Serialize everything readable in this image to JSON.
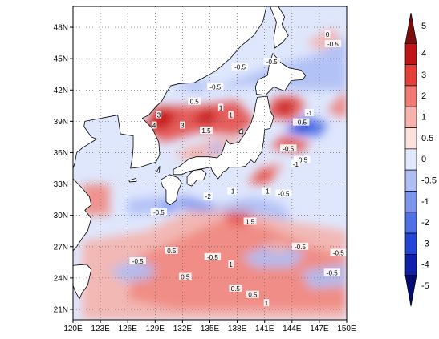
{
  "chart_data": {
    "type": "heatmap",
    "title": "",
    "xlabel": "",
    "ylabel": "",
    "xlim": [
      120,
      150
    ],
    "ylim": [
      20,
      50
    ],
    "x_ticks": [
      "120E",
      "123E",
      "126E",
      "129E",
      "132E",
      "135E",
      "138E",
      "141E",
      "144E",
      "147E",
      "150E"
    ],
    "y_ticks": [
      "21N",
      "24N",
      "27N",
      "30N",
      "33N",
      "36N",
      "39N",
      "42N",
      "45N",
      "48N"
    ],
    "grid": "dotted",
    "colorbar": {
      "placement": "right",
      "levels": [
        "5",
        "4",
        "3",
        "2",
        "1",
        "0.5",
        "0",
        "-0.5",
        "-1",
        "-2",
        "-3",
        "-4",
        "-5"
      ],
      "colors": [
        "#7a0e0e",
        "#c21414",
        "#e53f36",
        "#f07a72",
        "#f8b2ac",
        "#fde1dd",
        "#e1e8fd",
        "#aebef5",
        "#7b94ee",
        "#4f6fe6",
        "#2346d6",
        "#1120a8",
        "#060b72"
      ]
    },
    "contour_labels": [
      {
        "text": "-0.5",
        "lon": 135.6,
        "lat": 42.3
      },
      {
        "text": "-0.5",
        "lon": 138.3,
        "lat": 44.2
      },
      {
        "text": "-0.5",
        "lon": 141.8,
        "lat": 44.7
      },
      {
        "text": "0",
        "lon": 147.9,
        "lat": 47.3
      },
      {
        "text": "-0.5",
        "lon": 148.5,
        "lat": 46.4
      },
      {
        "text": "3",
        "lon": 129.4,
        "lat": 39.6
      },
      {
        "text": "4",
        "lon": 128.9,
        "lat": 38.6
      },
      {
        "text": "3",
        "lon": 132.0,
        "lat": 38.6
      },
      {
        "text": "1.5",
        "lon": 134.6,
        "lat": 38.1
      },
      {
        "text": "1",
        "lon": 137.3,
        "lat": 39.6
      },
      {
        "text": "1",
        "lon": 136.2,
        "lat": 40.3
      },
      {
        "text": "0.5",
        "lon": 133.3,
        "lat": 40.9
      },
      {
        "text": "-1",
        "lon": 145.9,
        "lat": 39.8
      },
      {
        "text": "-0.5",
        "lon": 145.0,
        "lat": 38.9
      },
      {
        "text": "-0.5",
        "lon": 143.6,
        "lat": 36.4
      },
      {
        "text": "-0.5",
        "lon": 145.1,
        "lat": 35.3
      },
      {
        "text": "-1",
        "lon": 144.4,
        "lat": 34.9
      },
      {
        "text": "-0.5",
        "lon": 143.1,
        "lat": 32.1
      },
      {
        "text": "-1",
        "lon": 141.2,
        "lat": 32.3
      },
      {
        "text": "-1",
        "lon": 137.4,
        "lat": 32.3
      },
      {
        "text": "-2",
        "lon": 134.8,
        "lat": 31.8
      },
      {
        "text": "1.5",
        "lon": 139.4,
        "lat": 29.4
      },
      {
        "text": "-0.5",
        "lon": 129.4,
        "lat": 30.3
      },
      {
        "text": "0.5",
        "lon": 130.8,
        "lat": 26.6
      },
      {
        "text": "-0.5",
        "lon": 127.1,
        "lat": 25.6
      },
      {
        "text": "0.5",
        "lon": 132.3,
        "lat": 24.1
      },
      {
        "text": "-0.5",
        "lon": 135.3,
        "lat": 26.0
      },
      {
        "text": "1",
        "lon": 137.3,
        "lat": 25.3
      },
      {
        "text": "0.5",
        "lon": 137.8,
        "lat": 23.0
      },
      {
        "text": "0.5",
        "lon": 139.7,
        "lat": 22.4
      },
      {
        "text": "1",
        "lon": 141.2,
        "lat": 21.6
      },
      {
        "text": "-0.5",
        "lon": 144.9,
        "lat": 27.0
      },
      {
        "text": "-0.5",
        "lon": 148.4,
        "lat": 24.5
      },
      {
        "text": "-0.5",
        "lon": 149.1,
        "lat": 26.4
      }
    ]
  }
}
